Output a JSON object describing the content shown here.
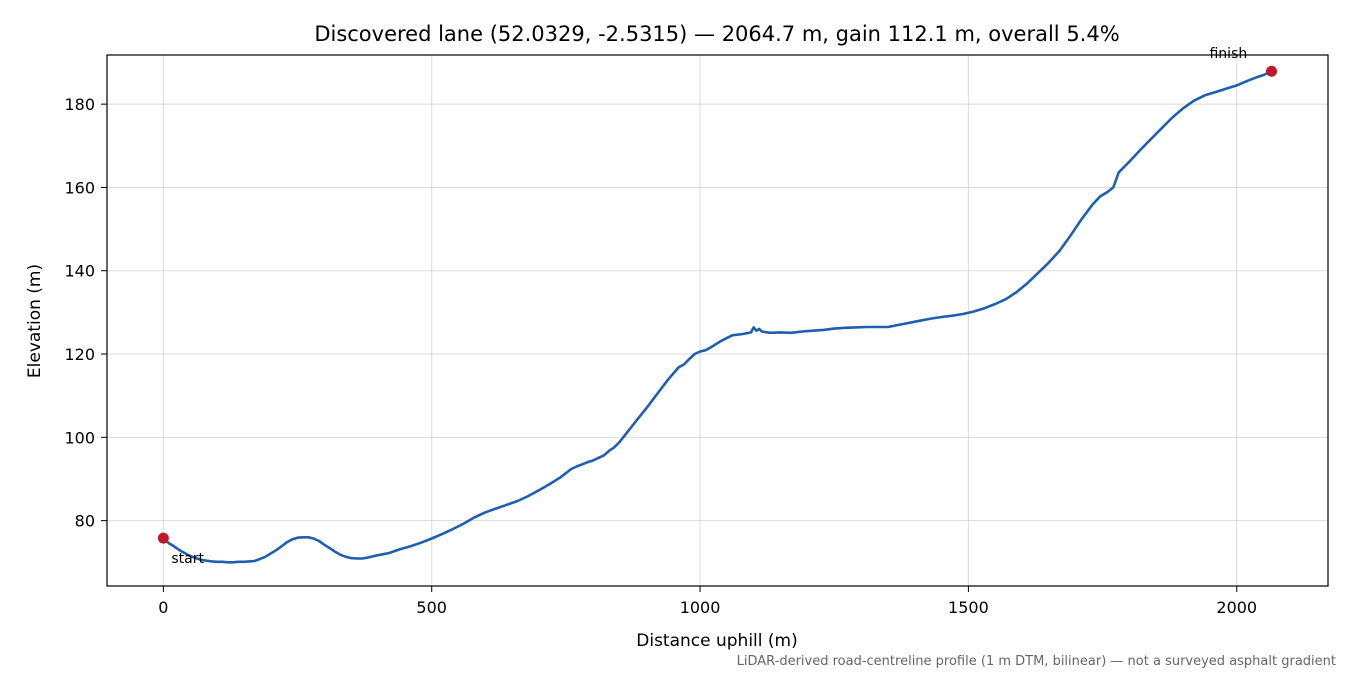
{
  "chart_data": {
    "type": "line",
    "title": "Discovered lane (52.0329, -2.5315) — 2064.7 m, gain 112.1 m, overall 5.4%",
    "xlabel": "Distance uphill (m)",
    "ylabel": "Elevation (m)",
    "xlim": [
      -105,
      2170
    ],
    "ylim": [
      64.3,
      191.8
    ],
    "x_ticks": [
      0,
      500,
      1000,
      1500,
      2000
    ],
    "y_ticks": [
      80,
      100,
      120,
      140,
      160,
      180
    ],
    "grid": true,
    "line_color": "#1f5fb0",
    "marker_color": "#c0182a",
    "series": [
      {
        "points": [
          [
            0,
            75.8
          ],
          [
            10,
            74.6
          ],
          [
            20,
            73.8
          ],
          [
            30,
            72.9
          ],
          [
            40,
            72.2
          ],
          [
            50,
            71.5
          ],
          [
            60,
            71.0
          ],
          [
            70,
            70.6
          ],
          [
            80,
            70.4
          ],
          [
            90,
            70.2
          ],
          [
            100,
            70.1
          ],
          [
            110,
            70.1
          ],
          [
            120,
            70.0
          ],
          [
            130,
            70.0
          ],
          [
            140,
            70.1
          ],
          [
            150,
            70.1
          ],
          [
            160,
            70.2
          ],
          [
            170,
            70.3
          ],
          [
            180,
            70.8
          ],
          [
            190,
            71.3
          ],
          [
            200,
            72.1
          ],
          [
            210,
            72.9
          ],
          [
            220,
            73.8
          ],
          [
            230,
            74.8
          ],
          [
            240,
            75.5
          ],
          [
            250,
            75.9
          ],
          [
            260,
            76.0
          ],
          [
            270,
            76.0
          ],
          [
            280,
            75.7
          ],
          [
            290,
            75.1
          ],
          [
            300,
            74.2
          ],
          [
            310,
            73.4
          ],
          [
            320,
            72.5
          ],
          [
            330,
            71.8
          ],
          [
            340,
            71.3
          ],
          [
            350,
            71.0
          ],
          [
            360,
            70.9
          ],
          [
            370,
            70.9
          ],
          [
            380,
            71.1
          ],
          [
            390,
            71.4
          ],
          [
            400,
            71.7
          ],
          [
            420,
            72.2
          ],
          [
            440,
            73.1
          ],
          [
            460,
            73.8
          ],
          [
            480,
            74.7
          ],
          [
            500,
            75.7
          ],
          [
            520,
            76.8
          ],
          [
            540,
            78.0
          ],
          [
            560,
            79.3
          ],
          [
            580,
            80.8
          ],
          [
            600,
            82.0
          ],
          [
            620,
            82.9
          ],
          [
            640,
            83.8
          ],
          [
            660,
            84.7
          ],
          [
            680,
            85.9
          ],
          [
            700,
            87.3
          ],
          [
            720,
            88.8
          ],
          [
            740,
            90.4
          ],
          [
            760,
            92.4
          ],
          [
            770,
            93.0
          ],
          [
            780,
            93.5
          ],
          [
            790,
            94.0
          ],
          [
            800,
            94.4
          ],
          [
            810,
            95.0
          ],
          [
            820,
            95.6
          ],
          [
            830,
            96.7
          ],
          [
            840,
            97.6
          ],
          [
            850,
            98.9
          ],
          [
            860,
            100.5
          ],
          [
            880,
            103.8
          ],
          [
            900,
            107.0
          ],
          [
            920,
            110.4
          ],
          [
            940,
            113.8
          ],
          [
            960,
            116.8
          ],
          [
            970,
            117.5
          ],
          [
            980,
            118.8
          ],
          [
            990,
            120.0
          ],
          [
            1000,
            120.6
          ],
          [
            1010,
            120.9
          ],
          [
            1020,
            121.6
          ],
          [
            1040,
            123.2
          ],
          [
            1060,
            124.5
          ],
          [
            1080,
            124.8
          ],
          [
            1095,
            125.2
          ],
          [
            1100,
            126.4
          ],
          [
            1105,
            125.6
          ],
          [
            1110,
            126.0
          ],
          [
            1115,
            125.4
          ],
          [
            1130,
            125.1
          ],
          [
            1150,
            125.2
          ],
          [
            1170,
            125.1
          ],
          [
            1190,
            125.4
          ],
          [
            1210,
            125.6
          ],
          [
            1230,
            125.8
          ],
          [
            1250,
            126.1
          ],
          [
            1270,
            126.3
          ],
          [
            1290,
            126.4
          ],
          [
            1310,
            126.5
          ],
          [
            1330,
            126.5
          ],
          [
            1350,
            126.5
          ],
          [
            1370,
            127.0
          ],
          [
            1390,
            127.5
          ],
          [
            1410,
            128.0
          ],
          [
            1430,
            128.5
          ],
          [
            1450,
            128.9
          ],
          [
            1470,
            129.2
          ],
          [
            1490,
            129.6
          ],
          [
            1510,
            130.2
          ],
          [
            1530,
            131.0
          ],
          [
            1550,
            132.0
          ],
          [
            1570,
            133.2
          ],
          [
            1590,
            134.9
          ],
          [
            1610,
            137.0
          ],
          [
            1630,
            139.5
          ],
          [
            1650,
            142.0
          ],
          [
            1670,
            144.8
          ],
          [
            1690,
            148.4
          ],
          [
            1710,
            152.2
          ],
          [
            1730,
            155.7
          ],
          [
            1745,
            157.8
          ],
          [
            1760,
            159.0
          ],
          [
            1770,
            160.0
          ],
          [
            1780,
            163.6
          ],
          [
            1800,
            166.2
          ],
          [
            1820,
            169.0
          ],
          [
            1840,
            171.6
          ],
          [
            1860,
            174.2
          ],
          [
            1880,
            176.8
          ],
          [
            1900,
            179.0
          ],
          [
            1920,
            180.8
          ],
          [
            1940,
            182.1
          ],
          [
            1960,
            182.9
          ],
          [
            1980,
            183.7
          ],
          [
            2000,
            184.5
          ],
          [
            2020,
            185.6
          ],
          [
            2040,
            186.6
          ],
          [
            2050,
            187.0
          ],
          [
            2064.7,
            187.9
          ]
        ]
      }
    ],
    "markers": [
      {
        "label": "start",
        "x": 0,
        "y": 75.8
      },
      {
        "label": "finish",
        "x": 2064.7,
        "y": 187.9
      }
    ],
    "footnote": "LiDAR-derived road-centreline profile (1 m DTM, bilinear) — not a surveyed asphalt gradient"
  }
}
